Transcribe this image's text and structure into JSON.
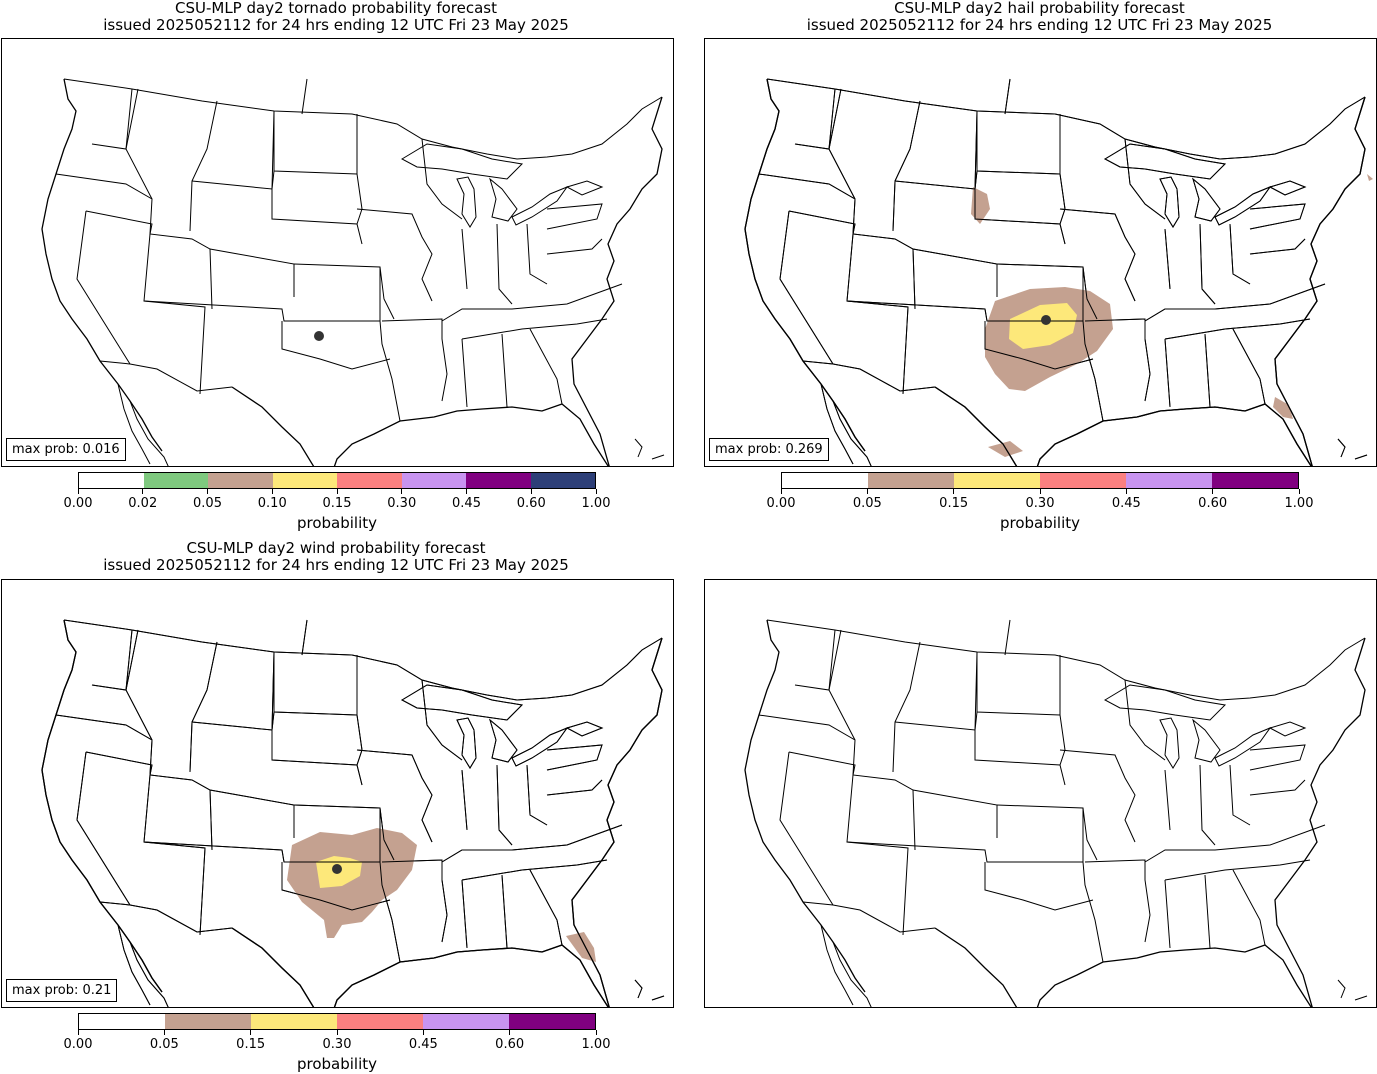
{
  "panels": {
    "tornado": {
      "title_line1": "CSU-MLP day2 tornado probability forecast",
      "title_line2": "issued 2025052112 for 24 hrs ending 12 UTC Fri 23 May 2025",
      "max_prob": "max prob: 0.016",
      "colorbar": {
        "label": "probability",
        "ticks": [
          "0.00",
          "0.02",
          "0.05",
          "0.10",
          "0.15",
          "0.30",
          "0.45",
          "0.60",
          "1.00"
        ],
        "colors": [
          "#ffffff",
          "#7fc97f",
          "#c4a190",
          "#fde87a",
          "#fb8080",
          "#c894f0",
          "#800080",
          "#2d3f78"
        ]
      }
    },
    "hail": {
      "title_line1": "CSU-MLP day2 hail probability forecast",
      "title_line2": "issued 2025052112 for 24 hrs ending 12 UTC Fri 23 May 2025",
      "max_prob": "max prob: 0.269",
      "colorbar": {
        "label": "probability",
        "ticks": [
          "0.00",
          "0.05",
          "0.15",
          "0.30",
          "0.45",
          "0.60",
          "1.00"
        ],
        "colors": [
          "#ffffff",
          "#c4a190",
          "#fde87a",
          "#fb8080",
          "#c894f0",
          "#800080"
        ]
      }
    },
    "wind": {
      "title_line1": "CSU-MLP day2 wind probability forecast",
      "title_line2": "issued 2025052112 for 24 hrs ending 12 UTC Fri 23 May 2025",
      "max_prob": "max prob: 0.21",
      "colorbar": {
        "label": "probability",
        "ticks": [
          "0.00",
          "0.05",
          "0.15",
          "0.30",
          "0.45",
          "0.60",
          "1.00"
        ],
        "colors": [
          "#ffffff",
          "#c4a190",
          "#fde87a",
          "#fb8080",
          "#c894f0",
          "#800080"
        ]
      }
    },
    "blank": {}
  },
  "colors": {
    "prob_05": "#c4a190",
    "prob_15": "#fde87a",
    "max_marker": "#333333"
  }
}
